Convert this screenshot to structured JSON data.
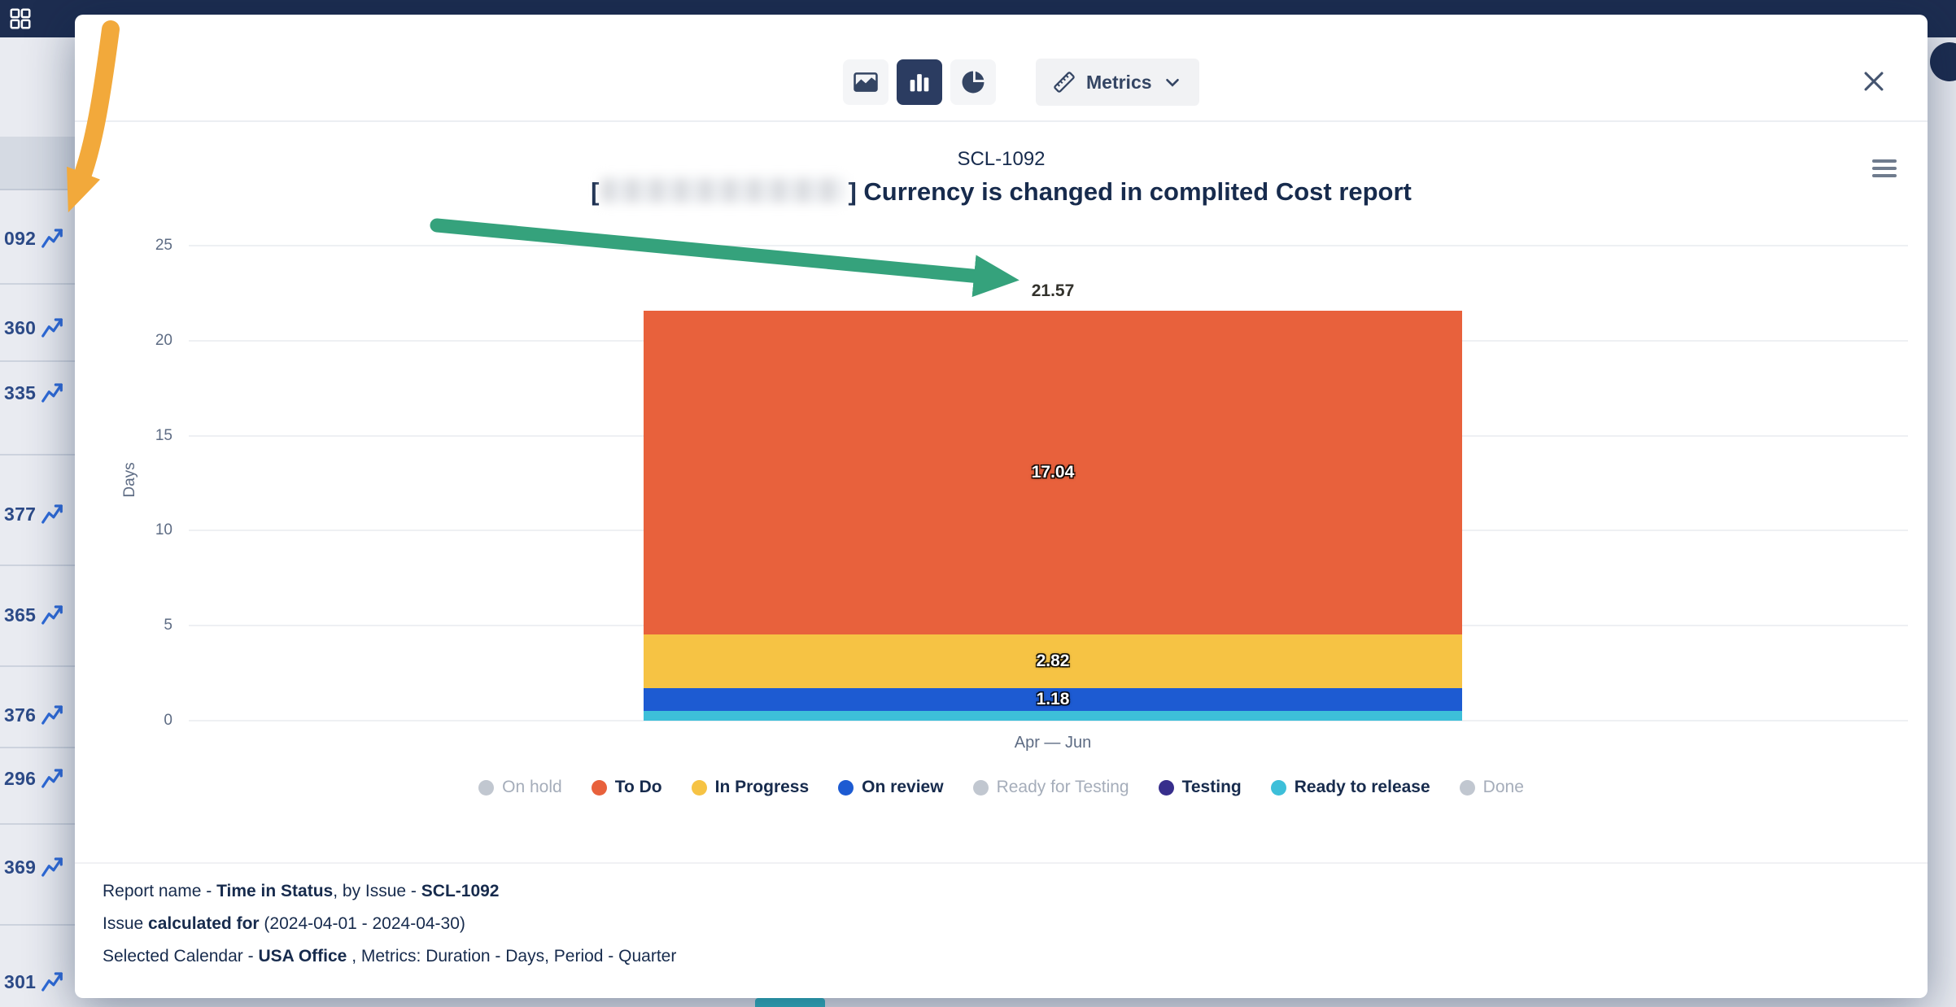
{
  "sidebar": {
    "rows": [
      "092",
      "360",
      "335",
      "377",
      "365",
      "376",
      "296",
      "369",
      "301"
    ]
  },
  "toolbar": {
    "chart_types": [
      "area",
      "bar",
      "pie"
    ],
    "active_chart_type": "bar",
    "metrics_label": "Metrics"
  },
  "chart_data": {
    "type": "bar",
    "stacked": true,
    "title": "SCL-1092",
    "subtitle_prefix": "[",
    "subtitle_suffix": "] Currency is changed in complited Cost report",
    "ylabel": "Days",
    "xlabel": "Apr — Jun",
    "categories": [
      "Apr — Jun"
    ],
    "ylim": [
      0,
      25
    ],
    "yticks": [
      0,
      5,
      10,
      15,
      20,
      25
    ],
    "total": 21.57,
    "total_label": "21.57",
    "series": [
      {
        "name": "On hold",
        "value": null,
        "color": "#c1c7d0",
        "enabled": false
      },
      {
        "name": "To Do",
        "value": 17.04,
        "color": "#e8613c",
        "enabled": true
      },
      {
        "name": "In Progress",
        "value": 2.82,
        "color": "#f6c344",
        "enabled": true
      },
      {
        "name": "On review",
        "value": 1.18,
        "color": "#1d5bd2",
        "enabled": true
      },
      {
        "name": "Ready for Testing",
        "value": null,
        "color": "#c1c7d0",
        "enabled": false
      },
      {
        "name": "Testing",
        "value": 0,
        "color": "#372e8c",
        "enabled": true
      },
      {
        "name": "Ready to release",
        "value": 0.53,
        "color": "#3dbfd9",
        "enabled": true
      },
      {
        "name": "Done",
        "value": null,
        "color": "#c1c7d0",
        "enabled": false
      }
    ],
    "legend_position": "bottom",
    "grid": true
  },
  "footer": {
    "line1": [
      {
        "t": "Report name - "
      },
      {
        "t": "Time in Status",
        "b": 1
      },
      {
        "t": ", by Issue - "
      },
      {
        "t": "SCL-1092",
        "b": 1
      }
    ],
    "line2": [
      {
        "t": "Issue "
      },
      {
        "t": "calculated for",
        "b": 1
      },
      {
        "t": " (2024-04-01 - 2024-04-30)"
      }
    ],
    "line3": [
      {
        "t": "Selected Calendar - "
      },
      {
        "t": "USA Office",
        "b": 1
      },
      {
        "t": " , Metrics: Duration - Days, Period - Quarter"
      }
    ]
  },
  "annotations": [
    {
      "name": "orange-arrow",
      "color": "#f2a93b"
    },
    {
      "name": "green-arrow",
      "color": "#35a27c"
    }
  ]
}
